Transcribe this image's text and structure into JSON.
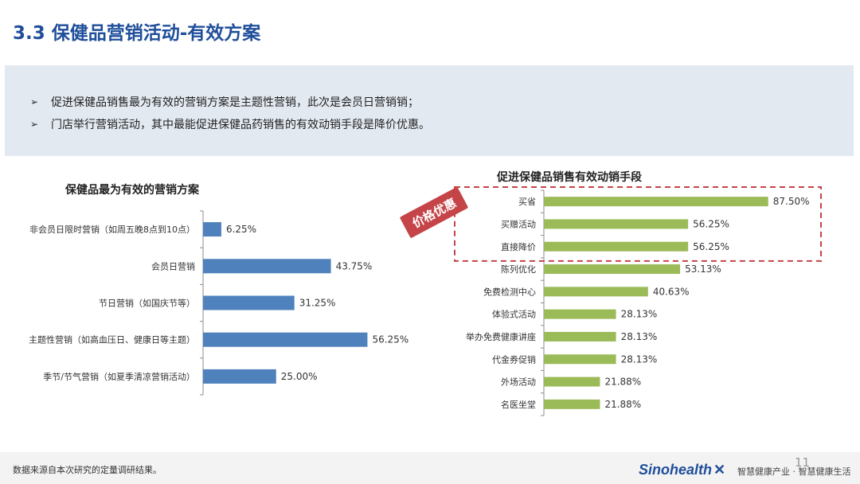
{
  "slide": {
    "title": "3.3 保健品营销活动-有效方案"
  },
  "summary": {
    "bullets": [
      "促进保健品销售最为有效的营销方案是主题性营销，此次是会员日营销销；",
      "门店举行营销活动，其中最能促进保健品药销售的有效动销手段是降价优惠。"
    ],
    "bullet_marker": "➢"
  },
  "chart_data": [
    {
      "type": "bar",
      "orientation": "horizontal",
      "title": "保健品最为有效的营销方案",
      "categories": [
        "非会员日限时营销（如周五晚8点到10点）",
        "会员日营销",
        "节日营销（如国庆节等）",
        "主题性营销（如高血压日、健康日等主题）",
        "季节/节气营销（如夏季清凉营销活动）"
      ],
      "values": [
        6.25,
        43.75,
        31.25,
        56.25,
        25.0
      ],
      "labels": [
        "6.25%",
        "43.75%",
        "31.25%",
        "56.25%",
        "25.00%"
      ],
      "unit": "%",
      "color": "#4f81bd",
      "xlim": [
        0,
        100
      ],
      "grid": false
    },
    {
      "type": "bar",
      "orientation": "horizontal",
      "title": "促进保健品销售有效动销手段",
      "categories": [
        "买省",
        "买赠活动",
        "直接降价",
        "陈列优化",
        "免费检测中心",
        "体验式活动",
        "举办免费健康讲座",
        "代金券促销",
        "外场活动",
        "名医坐堂"
      ],
      "values": [
        87.5,
        56.25,
        56.25,
        53.13,
        40.63,
        28.13,
        28.13,
        28.13,
        21.88,
        21.88
      ],
      "labels": [
        "87.50%",
        "56.25%",
        "56.25%",
        "53.13%",
        "40.63%",
        "28.13%",
        "28.13%",
        "28.13%",
        "21.88%",
        "21.88%"
      ],
      "unit": "%",
      "color": "#9bbb59",
      "xlim": [
        0,
        100
      ],
      "grid": false,
      "highlight": {
        "label": "价格优惠",
        "categories": [
          "买省",
          "买赠活动",
          "直接降价"
        ],
        "color": "#c44448"
      }
    }
  ],
  "footer": {
    "note": "数据来源自本次研究的定量调研结果。",
    "page_number": "11",
    "brand": "Sinohealth",
    "slogan": "智慧健康产业 · 智慧健康生活"
  }
}
